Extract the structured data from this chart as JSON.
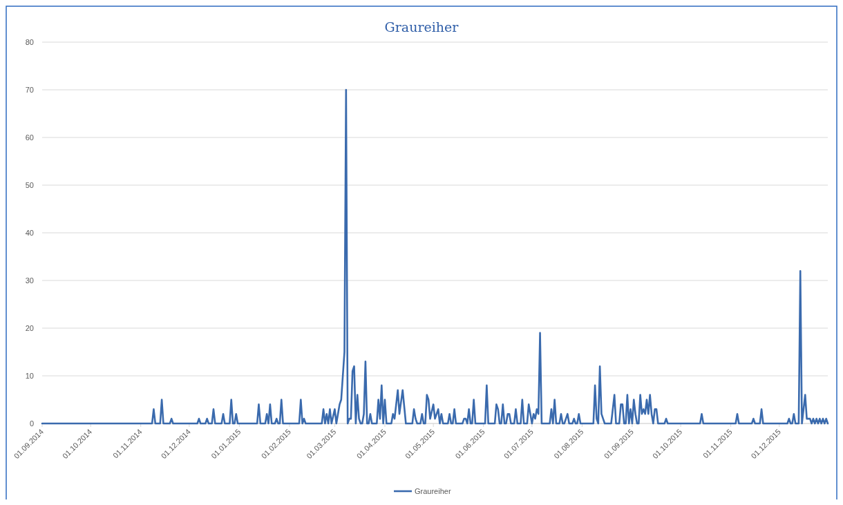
{
  "chart_data": {
    "type": "line",
    "title": "Graureiher",
    "xlim": [
      "2014-09-01",
      "2015-12-31"
    ],
    "xticks": [
      {
        "value": "2014-09-01",
        "label": "01.09.2014"
      },
      {
        "value": "2014-10-01",
        "label": "01.10.2014"
      },
      {
        "value": "2014-11-01",
        "label": "01.11.2014"
      },
      {
        "value": "2014-12-01",
        "label": "01.12.2014"
      },
      {
        "value": "2015-01-01",
        "label": "01.01.2015"
      },
      {
        "value": "2015-02-01",
        "label": "01.02.2015"
      },
      {
        "value": "2015-03-01",
        "label": "01.03.2015"
      },
      {
        "value": "2015-04-01",
        "label": "01.04.2015"
      },
      {
        "value": "2015-05-01",
        "label": "01.05.2015"
      },
      {
        "value": "2015-06-01",
        "label": "01.06.2015"
      },
      {
        "value": "2015-07-01",
        "label": "01.07.2015"
      },
      {
        "value": "2015-08-01",
        "label": "01.08.2015"
      },
      {
        "value": "2015-09-01",
        "label": "01.09.2015"
      },
      {
        "value": "2015-10-01",
        "label": "01.10.2015"
      },
      {
        "value": "2015-11-01",
        "label": "01.11.2015"
      },
      {
        "value": "2015-12-01",
        "label": "01.12.2015"
      }
    ],
    "ylim": [
      0,
      80
    ],
    "yticks": [
      0,
      10,
      20,
      30,
      40,
      50,
      60,
      70,
      80
    ],
    "grid": "y",
    "legend": "bottom",
    "marker": "none",
    "line_style": "solid",
    "x": [
      "2014-09-01",
      "2014-11-08",
      "2014-11-09",
      "2014-11-10",
      "2014-11-13",
      "2014-11-14",
      "2014-11-15",
      "2014-11-19",
      "2014-11-20",
      "2014-11-21",
      "2014-12-06",
      "2014-12-07",
      "2014-12-08",
      "2014-12-11",
      "2014-12-12",
      "2014-12-13",
      "2014-12-15",
      "2014-12-16",
      "2014-12-17",
      "2014-12-21",
      "2014-12-22",
      "2014-12-23",
      "2014-12-26",
      "2014-12-27",
      "2014-12-28",
      "2014-12-29",
      "2014-12-30",
      "2014-12-31",
      "2015-01-12",
      "2015-01-13",
      "2015-01-14",
      "2015-01-17",
      "2015-01-18",
      "2015-01-19",
      "2015-01-20",
      "2015-01-21",
      "2015-01-23",
      "2015-01-24",
      "2015-01-25",
      "2015-01-26",
      "2015-01-27",
      "2015-01-28",
      "2015-02-07",
      "2015-02-08",
      "2015-02-09",
      "2015-02-10",
      "2015-02-11",
      "2015-02-21",
      "2015-02-22",
      "2015-02-23",
      "2015-02-24",
      "2015-02-25",
      "2015-02-26",
      "2015-02-27",
      "2015-03-01",
      "2015-03-02",
      "2015-03-04",
      "2015-03-05",
      "2015-03-07",
      "2015-03-08",
      "2015-03-09",
      "2015-03-10",
      "2015-03-11",
      "2015-03-12",
      "2015-03-13",
      "2015-03-14",
      "2015-03-15",
      "2015-03-16",
      "2015-03-17",
      "2015-03-18",
      "2015-03-19",
      "2015-03-20",
      "2015-03-21",
      "2015-03-22",
      "2015-03-23",
      "2015-03-24",
      "2015-03-27",
      "2015-03-28",
      "2015-03-29",
      "2015-03-30",
      "2015-03-31",
      "2015-04-01",
      "2015-04-02",
      "2015-04-05",
      "2015-04-06",
      "2015-04-07",
      "2015-04-09",
      "2015-04-10",
      "2015-04-12",
      "2015-04-14",
      "2015-04-18",
      "2015-04-19",
      "2015-04-20",
      "2015-04-21",
      "2015-04-23",
      "2015-04-24",
      "2015-04-25",
      "2015-04-26",
      "2015-04-27",
      "2015-04-28",
      "2015-04-29",
      "2015-05-01",
      "2015-05-02",
      "2015-05-04",
      "2015-05-05",
      "2015-05-06",
      "2015-05-07",
      "2015-05-10",
      "2015-05-11",
      "2015-05-12",
      "2015-05-13",
      "2015-05-14",
      "2015-05-15",
      "2015-05-19",
      "2015-05-20",
      "2015-05-21",
      "2015-05-22",
      "2015-05-23",
      "2015-05-24",
      "2015-05-25",
      "2015-05-26",
      "2015-05-27",
      "2015-06-02",
      "2015-06-03",
      "2015-06-04",
      "2015-06-08",
      "2015-06-09",
      "2015-06-10",
      "2015-06-11",
      "2015-06-12",
      "2015-06-13",
      "2015-06-14",
      "2015-06-15",
      "2015-06-16",
      "2015-06-17",
      "2015-06-18",
      "2015-06-20",
      "2015-06-21",
      "2015-06-22",
      "2015-06-24",
      "2015-06-25",
      "2015-06-26",
      "2015-06-28",
      "2015-06-29",
      "2015-06-30",
      "2015-07-01",
      "2015-07-02",
      "2015-07-03",
      "2015-07-04",
      "2015-07-05",
      "2015-07-06",
      "2015-07-07",
      "2015-07-12",
      "2015-07-13",
      "2015-07-14",
      "2015-07-15",
      "2015-07-16",
      "2015-07-18",
      "2015-07-19",
      "2015-07-20",
      "2015-07-21",
      "2015-07-22",
      "2015-07-23",
      "2015-07-24",
      "2015-07-26",
      "2015-07-27",
      "2015-07-28",
      "2015-07-29",
      "2015-07-30",
      "2015-07-31",
      "2015-08-08",
      "2015-08-09",
      "2015-08-10",
      "2015-08-11",
      "2015-08-12",
      "2015-08-13",
      "2015-08-14",
      "2015-08-15",
      "2015-08-19",
      "2015-08-21",
      "2015-08-22",
      "2015-08-24",
      "2015-08-25",
      "2015-08-26",
      "2015-08-27",
      "2015-08-28",
      "2015-08-29",
      "2015-08-30",
      "2015-08-31",
      "2015-09-01",
      "2015-09-02",
      "2015-09-03",
      "2015-09-04",
      "2015-09-05",
      "2015-09-06",
      "2015-09-07",
      "2015-09-08",
      "2015-09-09",
      "2015-09-10",
      "2015-09-11",
      "2015-09-12",
      "2015-09-13",
      "2015-09-14",
      "2015-09-15",
      "2015-09-16",
      "2015-09-17",
      "2015-09-21",
      "2015-09-22",
      "2015-09-23",
      "2015-10-13",
      "2015-10-14",
      "2015-10-15",
      "2015-11-04",
      "2015-11-05",
      "2015-11-06",
      "2015-11-14",
      "2015-11-15",
      "2015-11-16",
      "2015-11-19",
      "2015-11-20",
      "2015-11-21",
      "2015-12-06",
      "2015-12-07",
      "2015-12-08",
      "2015-12-09",
      "2015-12-10",
      "2015-12-11",
      "2015-12-13",
      "2015-12-14",
      "2015-12-15",
      "2015-12-17",
      "2015-12-18",
      "2015-12-19",
      "2015-12-20",
      "2015-12-21",
      "2015-12-22",
      "2015-12-23",
      "2015-12-24",
      "2015-12-25",
      "2015-12-26",
      "2015-12-27",
      "2015-12-28",
      "2015-12-29",
      "2015-12-30",
      "2015-12-31"
    ],
    "series": [
      {
        "name": "Graureiher",
        "color": "#3a6aad",
        "values": [
          0,
          0,
          3,
          0,
          0,
          5,
          0,
          0,
          1,
          0,
          0,
          1,
          0,
          0,
          1,
          0,
          0,
          3,
          0,
          0,
          2,
          0,
          0,
          5,
          0,
          0,
          2,
          0,
          0,
          4,
          0,
          0,
          2,
          0,
          4,
          0,
          0,
          1,
          0,
          0,
          5,
          0,
          0,
          5,
          0,
          1,
          0,
          0,
          3,
          0,
          2,
          0,
          3,
          0,
          3,
          0,
          4,
          5,
          15,
          70,
          0,
          1,
          1,
          11,
          12,
          0,
          6,
          1,
          0,
          0,
          2,
          13,
          0,
          0,
          2,
          0,
          0,
          5,
          1,
          8,
          0,
          5,
          0,
          0,
          2,
          1,
          7,
          2,
          7,
          0,
          0,
          3,
          1,
          0,
          0,
          2,
          0,
          0,
          6,
          5,
          1,
          4,
          1,
          3,
          0,
          2,
          0,
          0,
          2,
          0,
          0,
          3,
          0,
          0,
          1,
          1,
          0,
          3,
          0,
          0,
          5,
          0,
          0,
          8,
          0,
          0,
          4,
          3,
          0,
          0,
          4,
          0,
          0,
          2,
          2,
          0,
          0,
          3,
          0,
          0,
          5,
          0,
          0,
          4,
          2,
          0,
          2,
          1,
          3,
          2,
          19,
          0,
          0,
          3,
          0,
          5,
          0,
          0,
          2,
          0,
          0,
          1,
          2,
          0,
          0,
          1,
          0,
          0,
          2,
          0,
          0,
          8,
          1,
          0,
          12,
          2,
          1,
          0,
          0,
          6,
          0,
          0,
          4,
          4,
          0,
          0,
          6,
          0,
          3,
          0,
          5,
          2,
          0,
          0,
          6,
          2,
          3,
          2,
          5,
          2,
          6,
          2,
          0,
          3,
          3,
          0,
          0,
          1,
          0,
          0,
          2,
          0,
          0,
          2,
          0,
          0,
          1,
          0,
          0,
          3,
          0,
          0,
          1,
          0,
          0,
          2,
          0,
          0,
          32,
          0,
          6,
          1,
          1,
          1,
          0,
          1,
          0,
          1,
          0,
          1,
          0,
          1,
          0,
          1,
          0
        ]
      }
    ]
  }
}
